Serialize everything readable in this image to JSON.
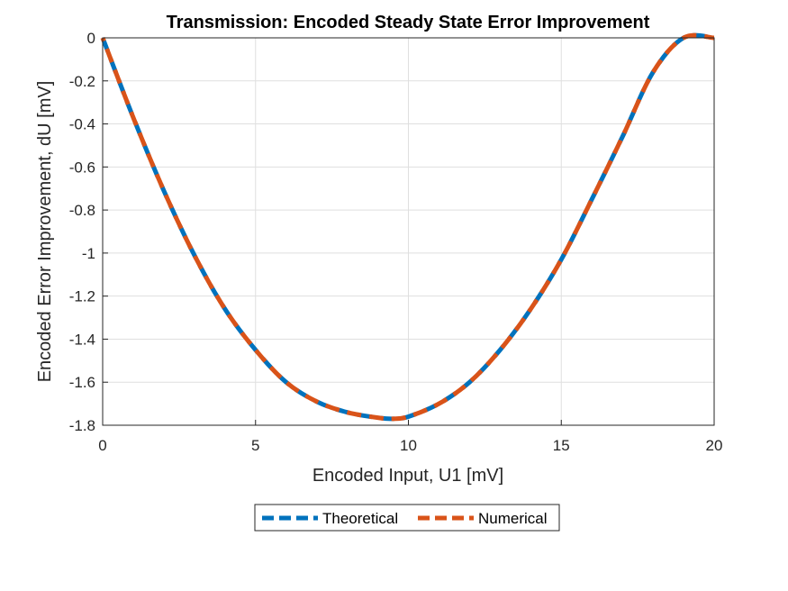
{
  "chart_data": {
    "type": "line",
    "title": "Transmission: Encoded Steady State Error Improvement",
    "xlabel": "Encoded Input, U1 [mV]",
    "ylabel": "Encoded Error Improvement, dU [mV]",
    "xlim": [
      0,
      20
    ],
    "ylim": [
      -1.8,
      0
    ],
    "xticks": [
      0,
      5,
      10,
      15,
      20
    ],
    "xtick_labels": [
      "0",
      "5",
      "10",
      "15",
      "20"
    ],
    "yticks": [
      0,
      -0.2,
      -0.4,
      -0.6,
      -0.8,
      -1,
      -1.2,
      -1.4,
      -1.6,
      -1.8
    ],
    "ytick_labels": [
      "0",
      "-0.2",
      "-0.4",
      "-0.6",
      "-0.8",
      "-1",
      "-1.2",
      "-1.4",
      "-1.6",
      "-1.8"
    ],
    "grid": true,
    "legend_position": "bottom-outside",
    "x": [
      0,
      1,
      2,
      3,
      4,
      5,
      6,
      7,
      8,
      9,
      9.5,
      10,
      11,
      12,
      13,
      14,
      15,
      16,
      17,
      18,
      19,
      20
    ],
    "series": [
      {
        "name": "Theoretical",
        "color": "#0072BD",
        "style": "dashed",
        "values": [
          0,
          -0.37,
          -0.71,
          -1.01,
          -1.26,
          -1.45,
          -1.6,
          -1.69,
          -1.74,
          -1.765,
          -1.77,
          -1.76,
          -1.7,
          -1.6,
          -1.45,
          -1.26,
          -1.03,
          -0.75,
          -0.46,
          -0.16,
          0.0,
          0.0
        ]
      },
      {
        "name": "Numerical",
        "color": "#D95319",
        "style": "dashed",
        "values": [
          0,
          -0.37,
          -0.71,
          -1.01,
          -1.26,
          -1.45,
          -1.6,
          -1.69,
          -1.74,
          -1.765,
          -1.77,
          -1.76,
          -1.7,
          -1.6,
          -1.45,
          -1.26,
          -1.03,
          -0.75,
          -0.46,
          -0.16,
          0.0,
          0.0
        ]
      }
    ]
  }
}
